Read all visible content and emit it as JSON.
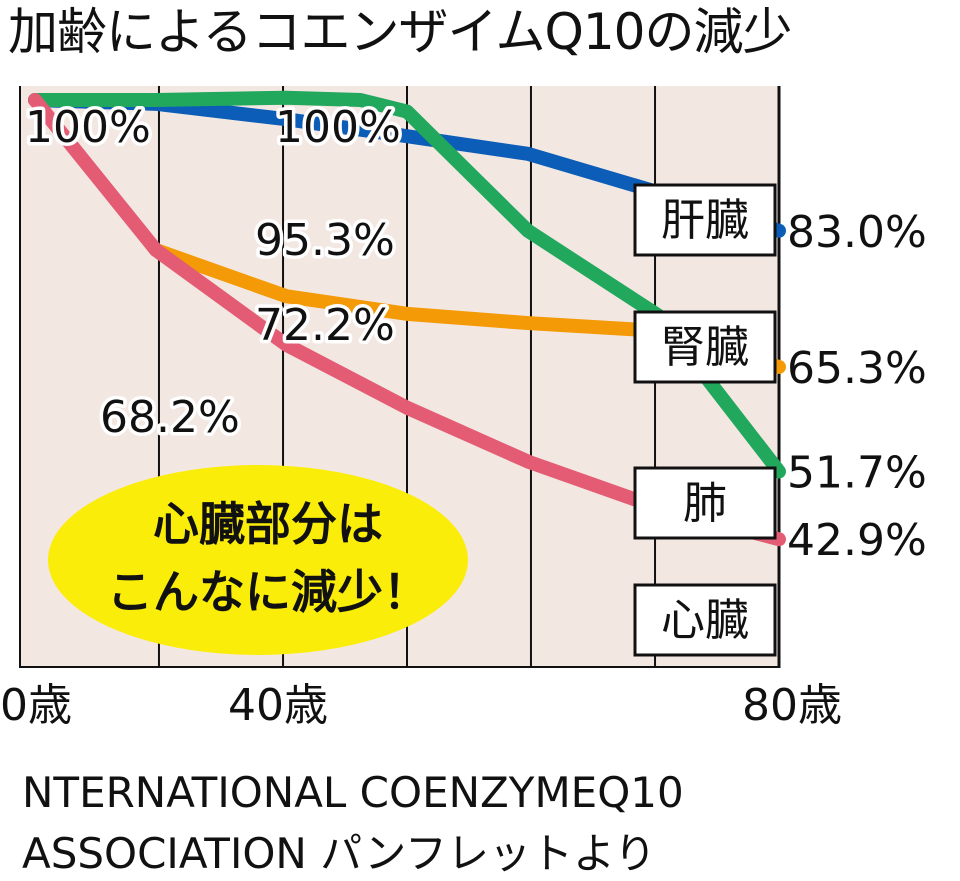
{
  "title": "加齢によるコエンザイムQ10の減少",
  "source": {
    "line1": "NTERNATIONAL COENZYMEQ10",
    "line2": "ASSOCIATION  パンフレットより"
  },
  "callout": {
    "line1": "心臓部分は",
    "line2": "こんなに減少！"
  },
  "colors": {
    "background": "#f3e7e2",
    "kidney": "#21a85d",
    "liver": "#0b5db8",
    "lung": "#f39a06",
    "heart": "#e45b74",
    "callout": "#fbed0a"
  },
  "chart_data": {
    "type": "line",
    "title": "加齢によるコエンザイムQ10の減少",
    "x_tick_labels": [
      {
        "x": 0,
        "label": "0歳"
      },
      {
        "x": 40,
        "label": "40歳"
      },
      {
        "x": 80,
        "label": "80歳"
      }
    ],
    "xlim": [
      0,
      80
    ],
    "ylim": [
      35,
      100
    ],
    "grid": "vertical",
    "series": [
      {
        "name": "肝臓",
        "color": "#0b5db8",
        "x": [
          0,
          13,
          27,
          40,
          53,
          67,
          80
        ],
        "values": [
          100,
          99.5,
          97.5,
          95.3,
          93.0,
          88.0,
          83.0
        ],
        "end_label": "83.0%"
      },
      {
        "name": "腎臓",
        "color": "#21a85d",
        "x": [
          0,
          13,
          27,
          35,
          40,
          53,
          67,
          80
        ],
        "values": [
          100,
          100,
          100.3,
          100.0,
          98.5,
          83.0,
          72.0,
          51.7
        ],
        "end_label": "51.7%"
      },
      {
        "name": "肺",
        "color": "#f39a06",
        "x": [
          13,
          27,
          40,
          53,
          67,
          80
        ],
        "values": [
          80.5,
          74.5,
          72.2,
          71.0,
          70.0,
          65.3
        ],
        "end_label": "65.3%"
      },
      {
        "name": "心臓",
        "color": "#e45b74",
        "x": [
          0,
          13,
          27,
          40,
          53,
          67,
          80
        ],
        "values": [
          100,
          80.5,
          68.2,
          60.0,
          53.0,
          47.0,
          42.9
        ],
        "end_label": "42.9%"
      }
    ],
    "annotations": [
      {
        "x": 0,
        "y": 100,
        "text": "100%"
      },
      {
        "x": 27,
        "y": 100.3,
        "text": "100%"
      },
      {
        "x": 27,
        "y": 95.3,
        "text": "95.3%"
      },
      {
        "x": 27,
        "y": 72.2,
        "text": "72.2%"
      },
      {
        "x": 13,
        "y": 68.2,
        "text": "68.2%"
      }
    ]
  }
}
